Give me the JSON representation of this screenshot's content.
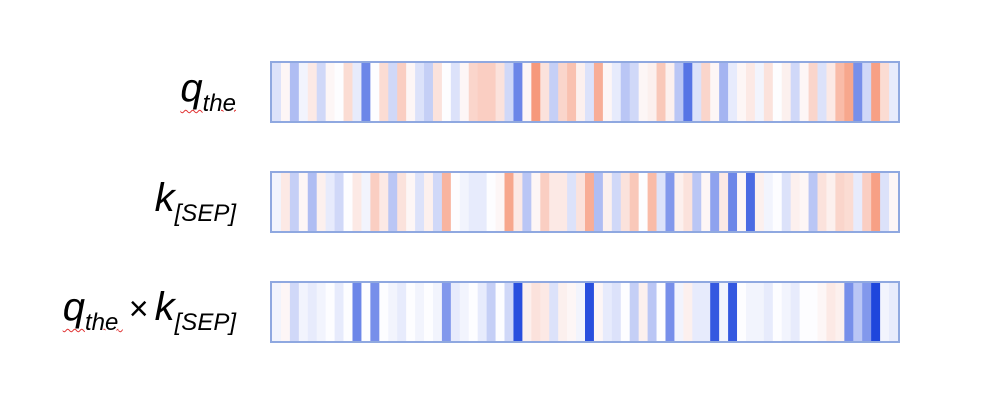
{
  "rows": [
    {
      "label_main": "q",
      "label_sub": "the",
      "squiggle": true,
      "values": [
        -0.15,
        0.05,
        -0.35,
        -0.05,
        0.15,
        -0.2,
        0.05,
        0,
        0.25,
        -0.1,
        -0.65,
        0,
        0.25,
        -0.2,
        0.35,
        0.05,
        -0.15,
        -0.25,
        0.2,
        0,
        -0.15,
        0.05,
        0.3,
        0.35,
        0.35,
        0.2,
        -0.2,
        -0.65,
        0.05,
        0.75,
        0.2,
        -0.25,
        0.3,
        0.45,
        0.1,
        -0.15,
        0.6,
        0.05,
        -0.1,
        -0.3,
        -0.2,
        0.05,
        0.1,
        0.4,
        0.1,
        -0.3,
        -0.75,
        -0.15,
        0.3,
        0.05,
        -0.4,
        -0.1,
        0.05,
        0.15,
        -0.05,
        0.2,
        0,
        0.1,
        -0.2,
        0.05,
        0.3,
        -0.15,
        0.15,
        0.5,
        0.65,
        -0.6,
        -0.2,
        0.7,
        0.25,
        -0.1
      ]
    },
    {
      "label_main": "k",
      "label_sub": "[SEP]",
      "squiggle": false,
      "values": [
        -0.05,
        0.15,
        -0.25,
        0.05,
        -0.35,
        0.1,
        -0.1,
        -0.2,
        0,
        0.15,
        -0.05,
        0.35,
        0.15,
        -0.3,
        0.2,
        0.05,
        -0.15,
        0.1,
        -0.2,
        0.55,
        0,
        -0.05,
        -0.1,
        -0.1,
        0,
        0.05,
        0.65,
        0.15,
        -0.3,
        0.05,
        0.35,
        0.15,
        0.15,
        -0.15,
        0.2,
        0.6,
        -0.35,
        0.1,
        -0.2,
        0.2,
        0.4,
        0,
        0.5,
        -0.15,
        -0.55,
        0.1,
        0.2,
        -0.3,
        0.05,
        -0.5,
        0.15,
        -0.65,
        0.05,
        -0.8,
        0.1,
        -0.05,
        0,
        -0.15,
        0.1,
        0.05,
        -0.3,
        0.2,
        0.1,
        0.3,
        0.25,
        -0.1,
        0.35,
        0.7,
        -0.15,
        0.05
      ]
    },
    {
      "label_main": "q",
      "label_sub": "the",
      "label_op": "×",
      "label_main2": "k",
      "label_sub2": "[SEP]",
      "squiggle": true,
      "values": [
        -0.05,
        0.05,
        -0.2,
        -0.05,
        -0.1,
        -0.05,
        0,
        -0.1,
        0,
        -0.65,
        0,
        -0.6,
        0,
        -0.05,
        -0.1,
        0,
        -0.05,
        0,
        -0.05,
        -0.55,
        -0.1,
        -0.05,
        0,
        -0.1,
        -0.25,
        0,
        -0.2,
        -0.95,
        0.1,
        0.2,
        0.15,
        -0.15,
        0.1,
        0.05,
        -0.05,
        -0.95,
        0.05,
        -0.1,
        -0.15,
        0,
        -0.25,
        0.1,
        -0.3,
        0,
        -0.6,
        -0.05,
        0.1,
        -0.1,
        -0.1,
        -0.9,
        -0.05,
        -0.9,
        0,
        -0.05,
        -0.05,
        -0.1,
        0,
        -0.05,
        -0.1,
        0,
        0,
        0.05,
        0.15,
        0.1,
        -0.6,
        -0.3,
        -0.55,
        -1.0,
        -0.05,
        -0.1
      ]
    }
  ]
}
